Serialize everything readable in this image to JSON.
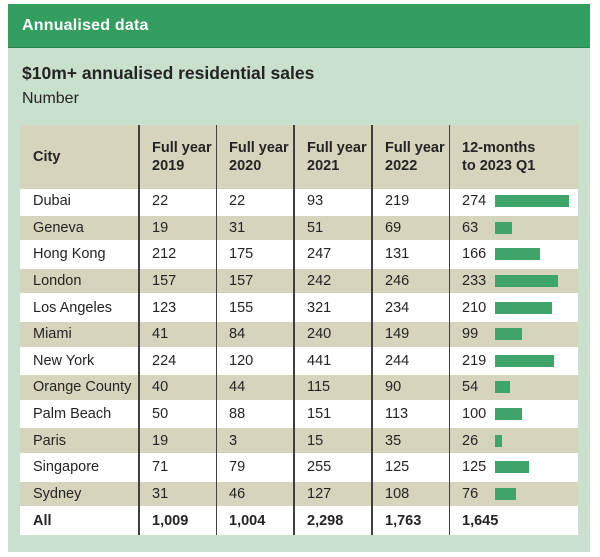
{
  "header": {
    "banner": "Annualised data",
    "title": "$10m+ annualised residential sales",
    "subtitle": "Number"
  },
  "table": {
    "columns": [
      "City",
      "Full year\n2019",
      "Full year\n2020",
      "Full year\n2021",
      "Full year\n2022",
      "12-months\nto 2023 Q1"
    ],
    "column_keys": [
      "city",
      "fy2019",
      "fy2020",
      "fy2021",
      "fy2022",
      "latest"
    ],
    "bar_max": 274,
    "rows": [
      {
        "city": "Dubai",
        "values": [
          "22",
          "22",
          "93",
          "219"
        ],
        "latest": "274",
        "bar": 274
      },
      {
        "city": "Geneva",
        "values": [
          "19",
          "31",
          "51",
          "69"
        ],
        "latest": "63",
        "bar": 63
      },
      {
        "city": "Hong Kong",
        "values": [
          "212",
          "175",
          "247",
          "131"
        ],
        "latest": "166",
        "bar": 166
      },
      {
        "city": "London",
        "values": [
          "157",
          "157",
          "242",
          "246"
        ],
        "latest": "233",
        "bar": 233
      },
      {
        "city": "Los Angeles",
        "values": [
          "123",
          "155",
          "321",
          "234"
        ],
        "latest": "210",
        "bar": 210
      },
      {
        "city": "Miami",
        "values": [
          "41",
          "84",
          "240",
          "149"
        ],
        "latest": "99",
        "bar": 99
      },
      {
        "city": "New York",
        "values": [
          "224",
          "120",
          "441",
          "244"
        ],
        "latest": "219",
        "bar": 219
      },
      {
        "city": "Orange County",
        "values": [
          "40",
          "44",
          "115",
          "90"
        ],
        "latest": "54",
        "bar": 54
      },
      {
        "city": "Palm Beach",
        "values": [
          "50",
          "88",
          "151",
          "113"
        ],
        "latest": "100",
        "bar": 100
      },
      {
        "city": "Paris",
        "values": [
          "19",
          "3",
          "15",
          "35"
        ],
        "latest": "26",
        "bar": 26
      },
      {
        "city": "Singapore",
        "values": [
          "71",
          "79",
          "255",
          "125"
        ],
        "latest": "125",
        "bar": 125
      },
      {
        "city": "Sydney",
        "values": [
          "31",
          "46",
          "127",
          "108"
        ],
        "latest": "76",
        "bar": 76
      }
    ],
    "total_row": {
      "city": "All",
      "values": [
        "1,009",
        "1,004",
        "2,298",
        "1,763"
      ],
      "latest": "1,645",
      "bar": null
    }
  },
  "chart_data": {
    "type": "table",
    "title": "$10m+ annualised residential sales",
    "subtitle": "Number",
    "section": "Annualised data",
    "columns": [
      "City",
      "Full year 2019",
      "Full year 2020",
      "Full year 2021",
      "Full year 2022",
      "12-months to 2023 Q1"
    ],
    "rows": [
      [
        "Dubai",
        22,
        22,
        93,
        219,
        274
      ],
      [
        "Geneva",
        19,
        31,
        51,
        69,
        63
      ],
      [
        "Hong Kong",
        212,
        175,
        247,
        131,
        166
      ],
      [
        "London",
        157,
        157,
        242,
        246,
        233
      ],
      [
        "Los Angeles",
        123,
        155,
        321,
        234,
        210
      ],
      [
        "Miami",
        41,
        84,
        240,
        149,
        99
      ],
      [
        "New York",
        224,
        120,
        441,
        244,
        219
      ],
      [
        "Orange County",
        40,
        44,
        115,
        90,
        54
      ],
      [
        "Palm Beach",
        50,
        88,
        151,
        113,
        100
      ],
      [
        "Paris",
        19,
        3,
        15,
        35,
        26
      ],
      [
        "Singapore",
        71,
        79,
        255,
        125,
        125
      ],
      [
        "Sydney",
        31,
        46,
        127,
        108,
        76
      ]
    ],
    "totals": [
      "All",
      1009,
      1004,
      2298,
      1763,
      1645
    ],
    "bar_column": "12-months to 2023 Q1",
    "bar_scale_max": 274,
    "legend_position": "none",
    "grid": false
  },
  "colors": {
    "panel_green": "#c9e0cd",
    "banner_green": "#339e60",
    "tan": "#d6d4bc",
    "bar_green": "#3ea469",
    "divider": "#3f3f3f",
    "text_dark": "#242424"
  }
}
